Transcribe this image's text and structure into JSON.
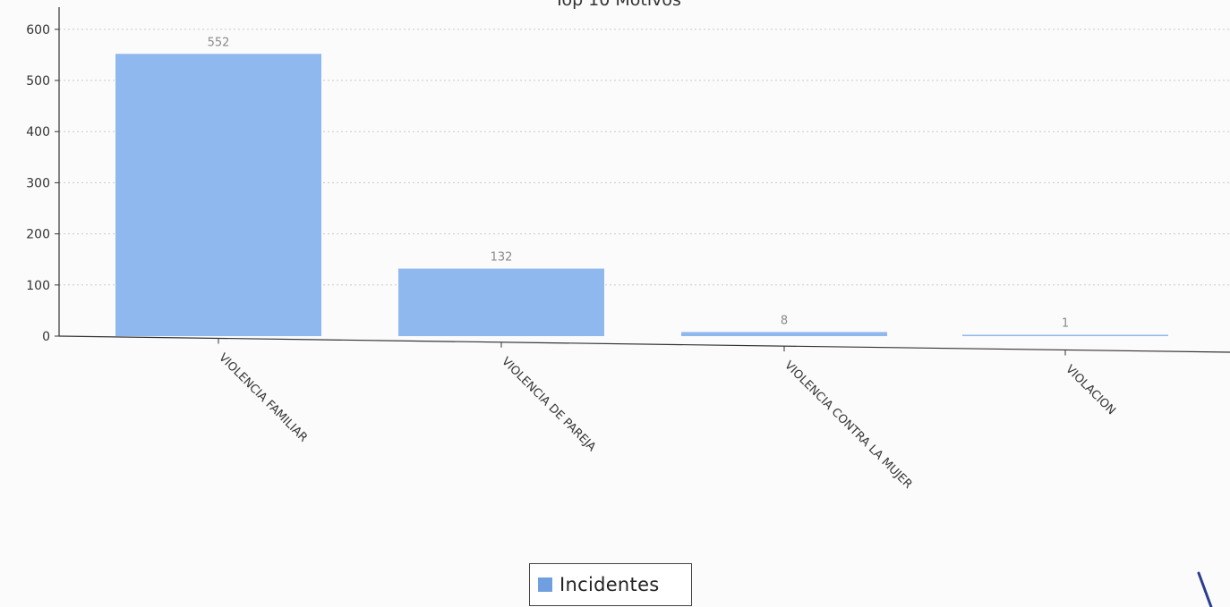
{
  "chart_data": {
    "type": "bar",
    "title": "Top 10 Motivos",
    "categories": [
      "VIOLENCIA FAMILIAR",
      "VIOLENCIA DE PAREJA",
      "VIOLENCIA CONTRA LA MUJER",
      "VIOLACION"
    ],
    "series": [
      {
        "name": "Incidentes",
        "values": [
          552,
          132,
          8,
          1
        ]
      }
    ],
    "value_labels": [
      "552",
      "132",
      "8",
      "1"
    ],
    "y_ticks": [
      0,
      100,
      200,
      300,
      400,
      500,
      600
    ],
    "y_tick_labels": [
      "0",
      "100",
      "200",
      "300",
      "400",
      "500",
      "600"
    ],
    "xlabel": "",
    "ylabel": "",
    "ylim": [
      0,
      640
    ],
    "grid": true,
    "legend_position": "bottom-center",
    "bar_color": "#8fb8ee",
    "legend_color": "#6f9fde"
  }
}
